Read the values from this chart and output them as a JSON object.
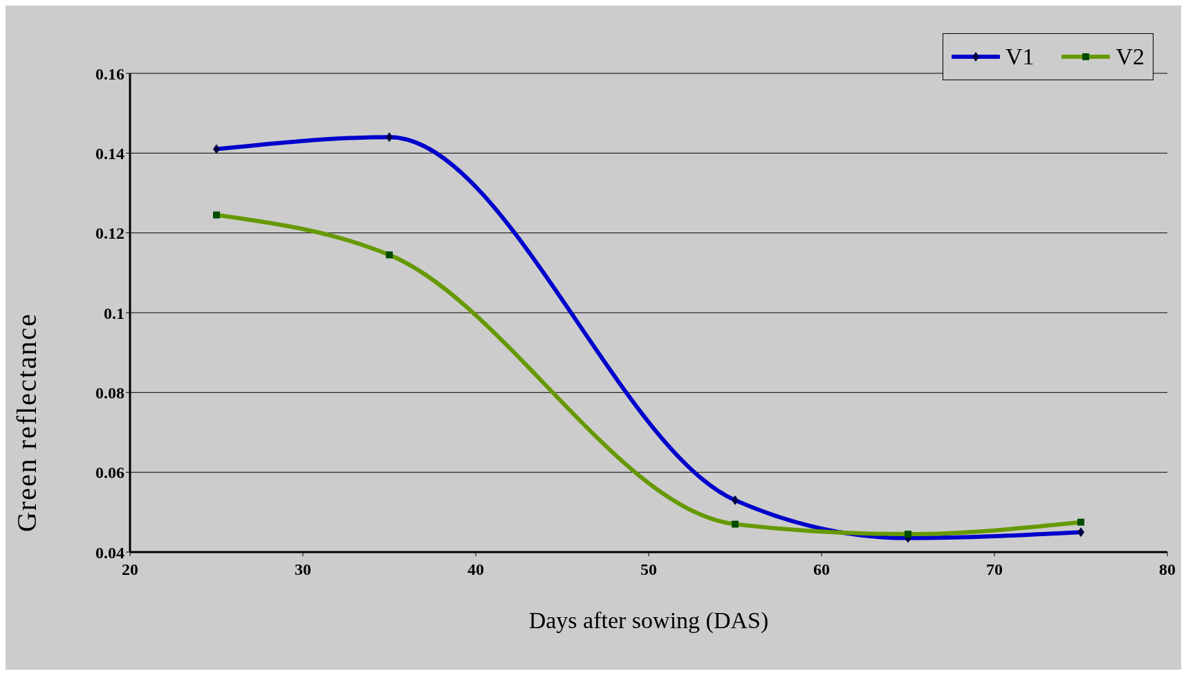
{
  "chart_data": {
    "type": "line",
    "xlabel": "Days after sowing (DAS)",
    "ylabel": "Green reflectance",
    "x": [
      25,
      35,
      55,
      65,
      75
    ],
    "series": [
      {
        "name": "V1",
        "color": "#0000cc",
        "marker": "diamond",
        "values": [
          0.141,
          0.144,
          0.053,
          0.0435,
          0.045
        ]
      },
      {
        "name": "V2",
        "color": "#669900",
        "marker": "square",
        "values": [
          0.1245,
          0.1145,
          0.047,
          0.0445,
          0.0475
        ]
      }
    ],
    "xlim": [
      20,
      80
    ],
    "xticks": [
      20,
      30,
      40,
      50,
      60,
      70,
      80
    ],
    "ylim": [
      0.04,
      0.16
    ],
    "yticks": [
      0.04,
      0.06,
      0.08,
      0.1,
      0.12,
      0.14,
      0.16
    ],
    "grid": "y",
    "legend": "top right",
    "line_style": "solid"
  }
}
